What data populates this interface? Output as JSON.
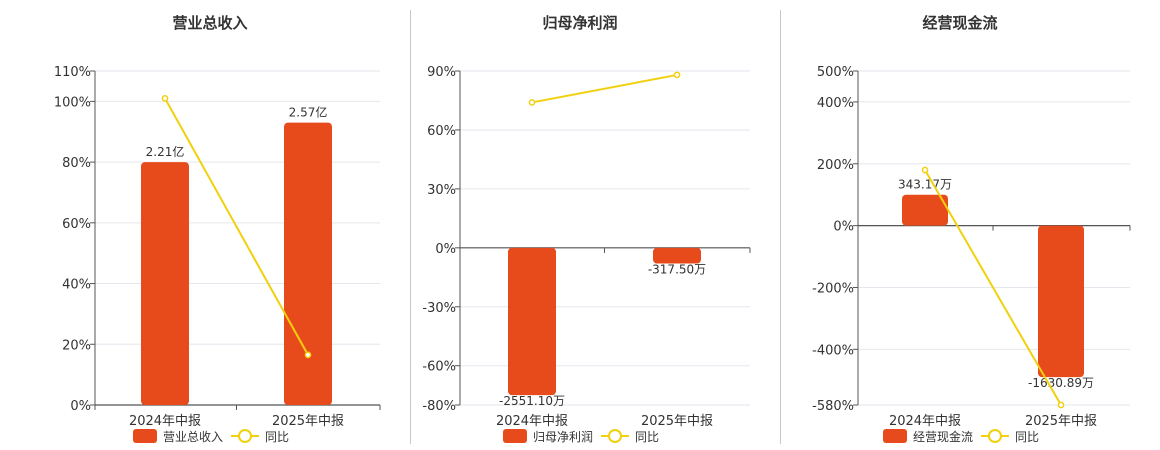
{
  "colors": {
    "bar": "#E84B1B",
    "line": "#F2D00E",
    "grid": "#e6e6ee",
    "axis": "#555555"
  },
  "chart_data": [
    {
      "type": "bar",
      "title": "营业总收入",
      "categories": [
        "2024年中报",
        "2025年中报"
      ],
      "ylim": [
        0,
        110
      ],
      "yticks": [
        0,
        20,
        40,
        60,
        80,
        100,
        110
      ],
      "ytick_labels": [
        "0%",
        "20%",
        "40%",
        "60%",
        "80%",
        "100%",
        "110%"
      ],
      "grid": true,
      "legend_position": "bottom",
      "series": [
        {
          "name": "营业总收入",
          "kind": "bar",
          "values": [
            80,
            93
          ],
          "labels": [
            "2.21亿",
            "2.57亿"
          ]
        },
        {
          "name": "同比",
          "kind": "line",
          "values": [
            101,
            16.5
          ]
        }
      ]
    },
    {
      "type": "bar",
      "title": "归母净利润",
      "categories": [
        "2024年中报",
        "2025年中报"
      ],
      "ylim": [
        -80,
        90
      ],
      "yticks": [
        -80,
        -60,
        -30,
        0,
        30,
        60,
        90
      ],
      "ytick_labels": [
        "-80%",
        "-60%",
        "-30%",
        "0%",
        "30%",
        "60%",
        "90%"
      ],
      "grid": true,
      "legend_position": "bottom",
      "series": [
        {
          "name": "归母净利润",
          "kind": "bar",
          "values": [
            -75,
            -8
          ],
          "labels": [
            "-2551.10万",
            "-317.50万"
          ]
        },
        {
          "name": "同比",
          "kind": "line",
          "values": [
            74,
            88
          ]
        }
      ]
    },
    {
      "type": "bar",
      "title": "经营现金流",
      "categories": [
        "2024年中报",
        "2025年中报"
      ],
      "ylim": [
        -580,
        500
      ],
      "yticks": [
        -580,
        -400,
        -200,
        0,
        200,
        400,
        500
      ],
      "ytick_labels": [
        "-580%",
        "-400%",
        "-200%",
        "0%",
        "200%",
        "400%",
        "500%"
      ],
      "grid": true,
      "legend_position": "bottom",
      "series": [
        {
          "name": "经营现金流",
          "kind": "bar",
          "values": [
            100,
            -490
          ],
          "labels": [
            "343.17万",
            "-1630.89万"
          ]
        },
        {
          "name": "同比",
          "kind": "line",
          "values": [
            180,
            -580
          ]
        }
      ]
    }
  ]
}
